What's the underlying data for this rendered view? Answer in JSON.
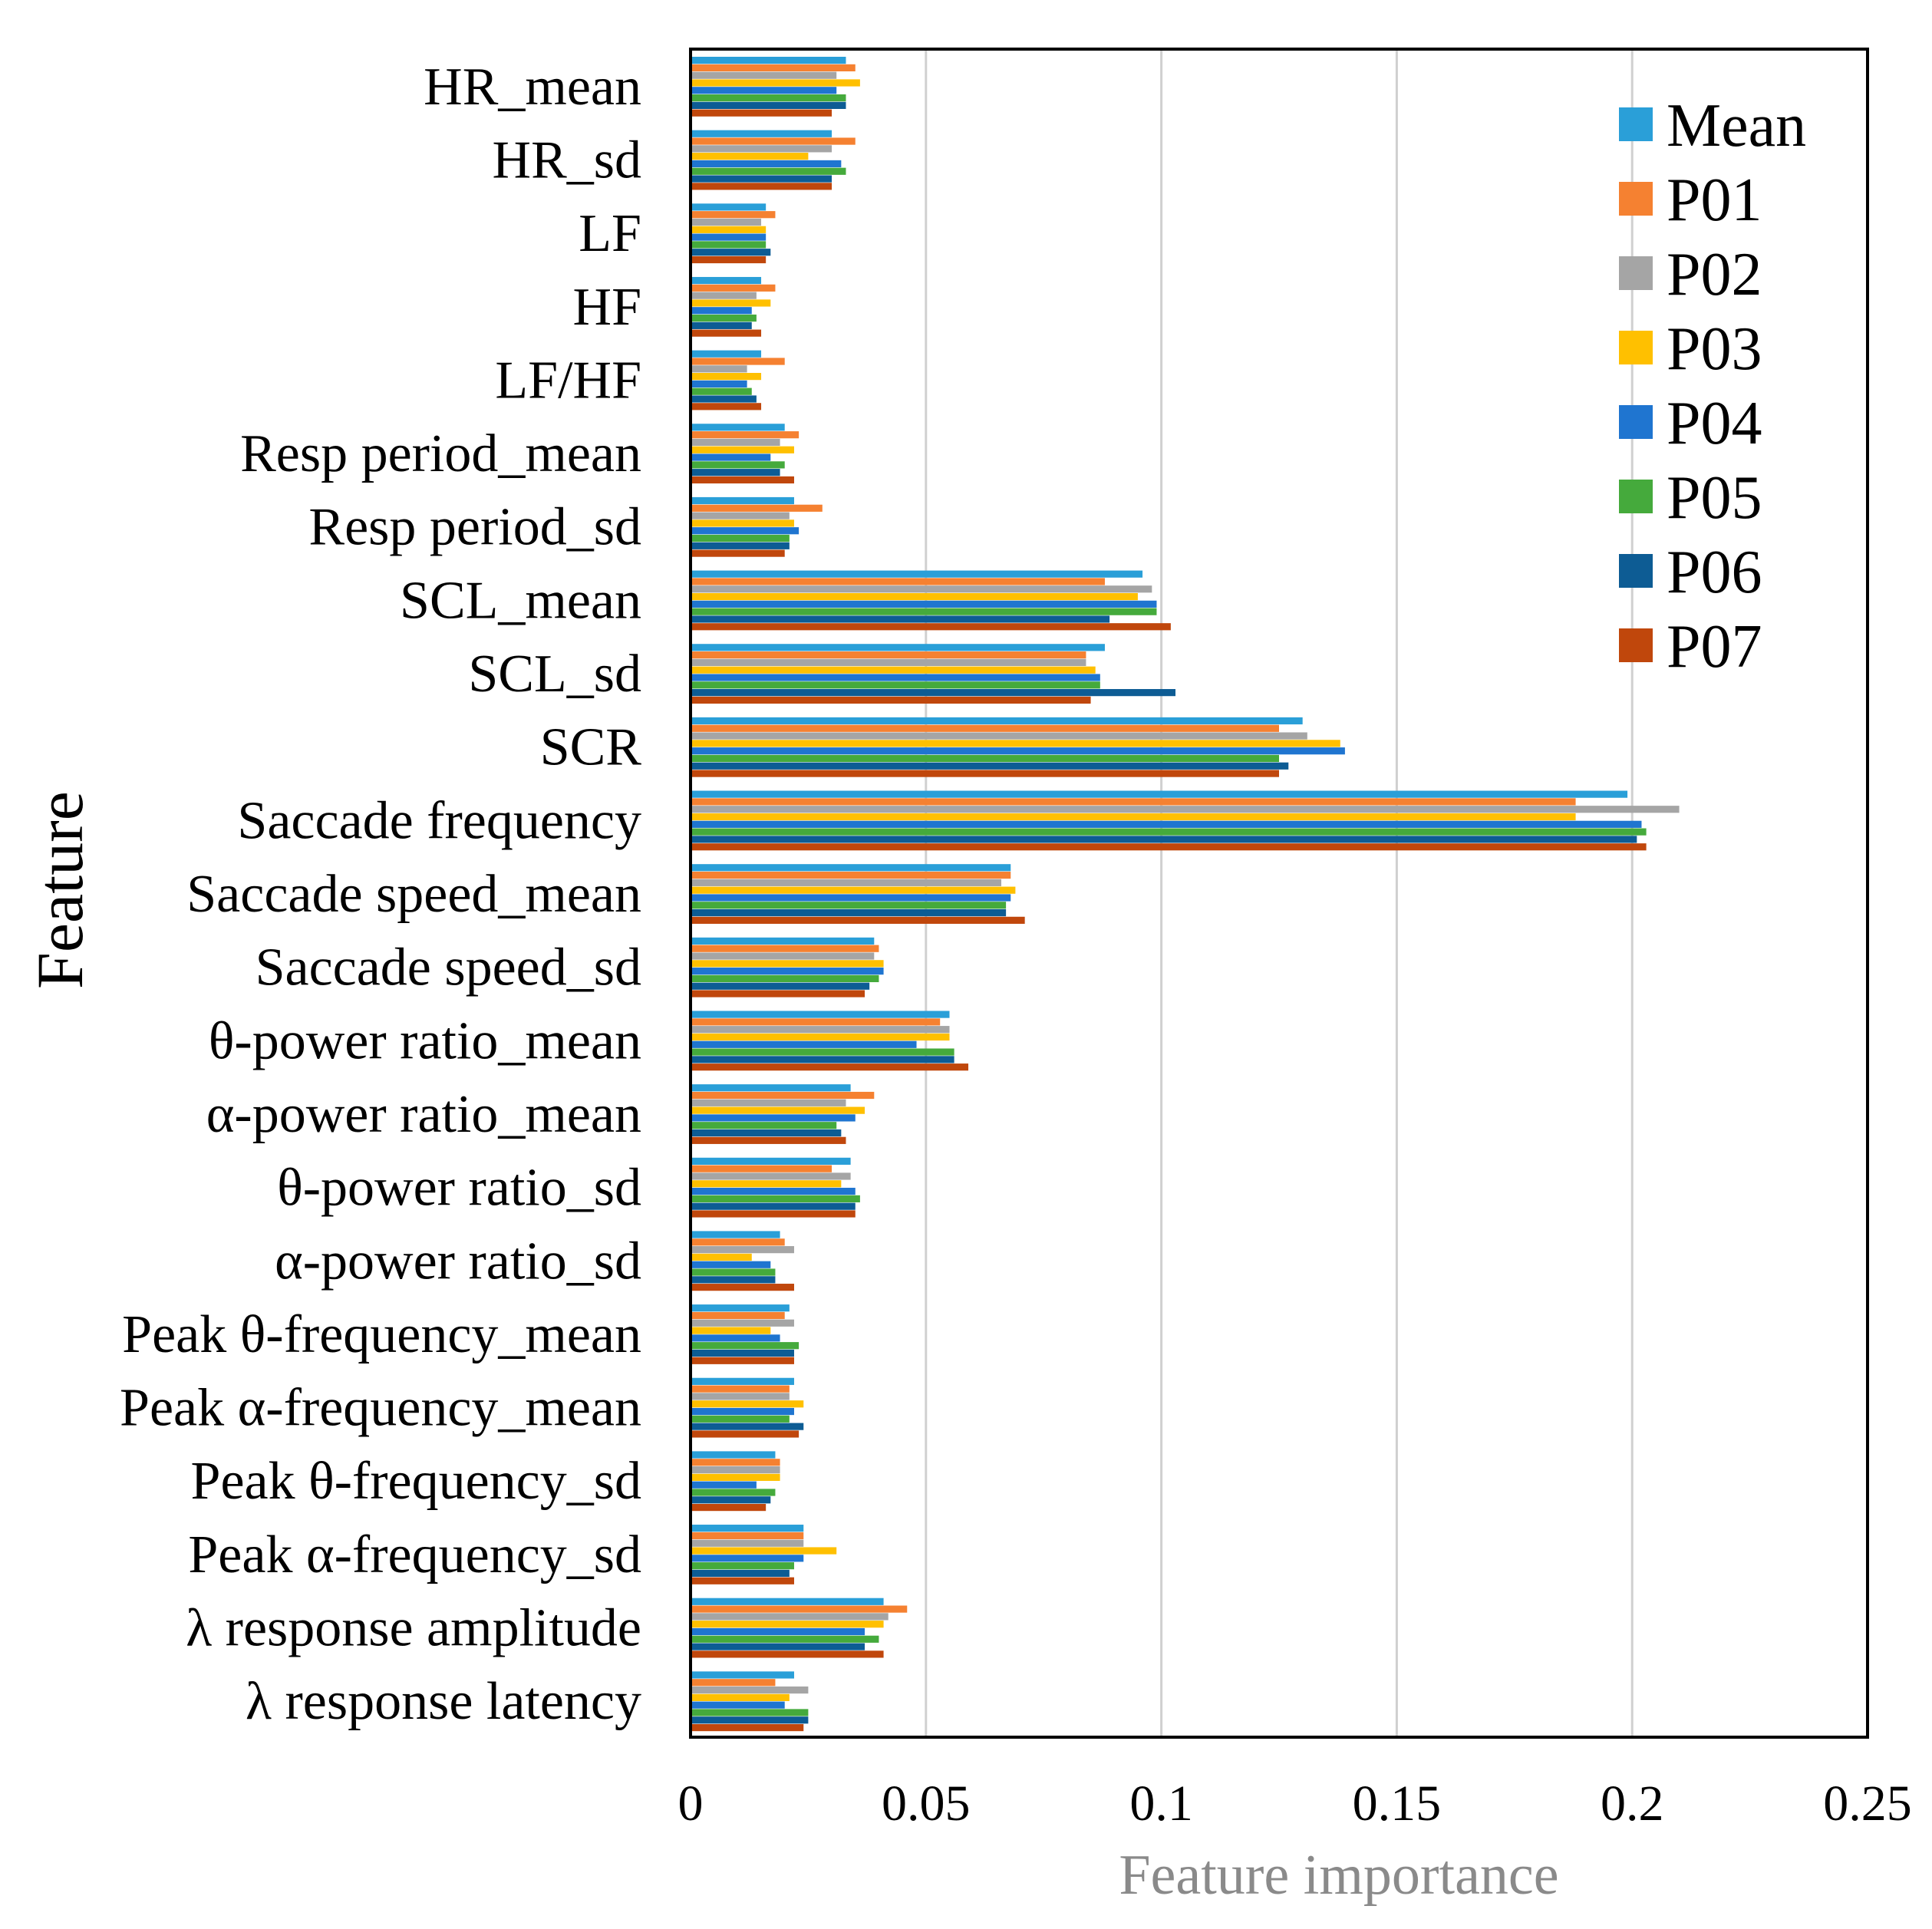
{
  "chart_data": {
    "type": "bar",
    "orientation": "horizontal",
    "title": "",
    "xlabel": "Feature importance",
    "ylabel": "Feature",
    "xlim": [
      0,
      0.25
    ],
    "x_ticks": [
      "0",
      "0.05",
      "0.1",
      "0.15",
      "0.2",
      "0.25"
    ],
    "x_tick_values": [
      0,
      0.05,
      0.1,
      0.15,
      0.2,
      0.25
    ],
    "grid": "vertical",
    "legend_position": "top-right",
    "categories": [
      "HR_mean",
      "HR_sd",
      "LF",
      "HF",
      "LF/HF",
      "Resp period_mean",
      "Resp period_sd",
      "SCL_mean",
      "SCL_sd",
      "SCR",
      "Saccade frequency",
      "Saccade speed_mean",
      "Saccade speed_sd",
      "θ-power ratio_mean",
      "α-power ratio_mean",
      "θ-power ratio_sd",
      "α-power ratio_sd",
      "Peak θ-frequency_mean",
      "Peak α-frequency_mean",
      "Peak θ-frequency_sd",
      "Peak α-frequency_sd",
      "λ response amplitude",
      "λ response latency"
    ],
    "series": [
      {
        "name": "Mean",
        "color": "#2a9fd8",
        "values": [
          0.033,
          0.03,
          0.016,
          0.015,
          0.015,
          0.02,
          0.022,
          0.096,
          0.088,
          0.13,
          0.199,
          0.068,
          0.039,
          0.055,
          0.034,
          0.034,
          0.019,
          0.021,
          0.022,
          0.018,
          0.024,
          0.041,
          0.022
        ]
      },
      {
        "name": "P01",
        "color": "#f58131",
        "values": [
          0.035,
          0.035,
          0.018,
          0.018,
          0.02,
          0.023,
          0.028,
          0.088,
          0.084,
          0.125,
          0.188,
          0.068,
          0.04,
          0.053,
          0.039,
          0.03,
          0.02,
          0.02,
          0.021,
          0.019,
          0.024,
          0.046,
          0.018
        ]
      },
      {
        "name": "P02",
        "color": "#a5a5a5",
        "values": [
          0.031,
          0.03,
          0.015,
          0.014,
          0.012,
          0.019,
          0.021,
          0.098,
          0.084,
          0.131,
          0.21,
          0.066,
          0.039,
          0.055,
          0.033,
          0.034,
          0.022,
          0.022,
          0.021,
          0.019,
          0.024,
          0.042,
          0.025
        ]
      },
      {
        "name": "P03",
        "color": "#ffc000",
        "values": [
          0.036,
          0.025,
          0.016,
          0.017,
          0.015,
          0.022,
          0.022,
          0.095,
          0.086,
          0.138,
          0.188,
          0.069,
          0.041,
          0.055,
          0.037,
          0.032,
          0.013,
          0.017,
          0.024,
          0.019,
          0.031,
          0.041,
          0.021
        ]
      },
      {
        "name": "P04",
        "color": "#1f75d0",
        "values": [
          0.031,
          0.032,
          0.016,
          0.013,
          0.012,
          0.017,
          0.023,
          0.099,
          0.087,
          0.139,
          0.202,
          0.068,
          0.041,
          0.048,
          0.035,
          0.035,
          0.017,
          0.019,
          0.022,
          0.014,
          0.024,
          0.037,
          0.02
        ]
      },
      {
        "name": "P05",
        "color": "#45aa3c",
        "values": [
          0.033,
          0.033,
          0.016,
          0.014,
          0.013,
          0.02,
          0.021,
          0.099,
          0.087,
          0.125,
          0.203,
          0.067,
          0.04,
          0.056,
          0.031,
          0.036,
          0.018,
          0.023,
          0.021,
          0.018,
          0.022,
          0.04,
          0.025
        ]
      },
      {
        "name": "P06",
        "color": "#0d5c94",
        "values": [
          0.033,
          0.03,
          0.017,
          0.013,
          0.014,
          0.019,
          0.021,
          0.089,
          0.103,
          0.127,
          0.201,
          0.067,
          0.038,
          0.056,
          0.032,
          0.035,
          0.018,
          0.022,
          0.024,
          0.017,
          0.021,
          0.037,
          0.025
        ]
      },
      {
        "name": "P07",
        "color": "#c0470c",
        "values": [
          0.03,
          0.03,
          0.016,
          0.015,
          0.015,
          0.022,
          0.02,
          0.102,
          0.085,
          0.125,
          0.203,
          0.071,
          0.037,
          0.059,
          0.033,
          0.035,
          0.022,
          0.022,
          0.023,
          0.016,
          0.022,
          0.041,
          0.024
        ]
      }
    ]
  }
}
